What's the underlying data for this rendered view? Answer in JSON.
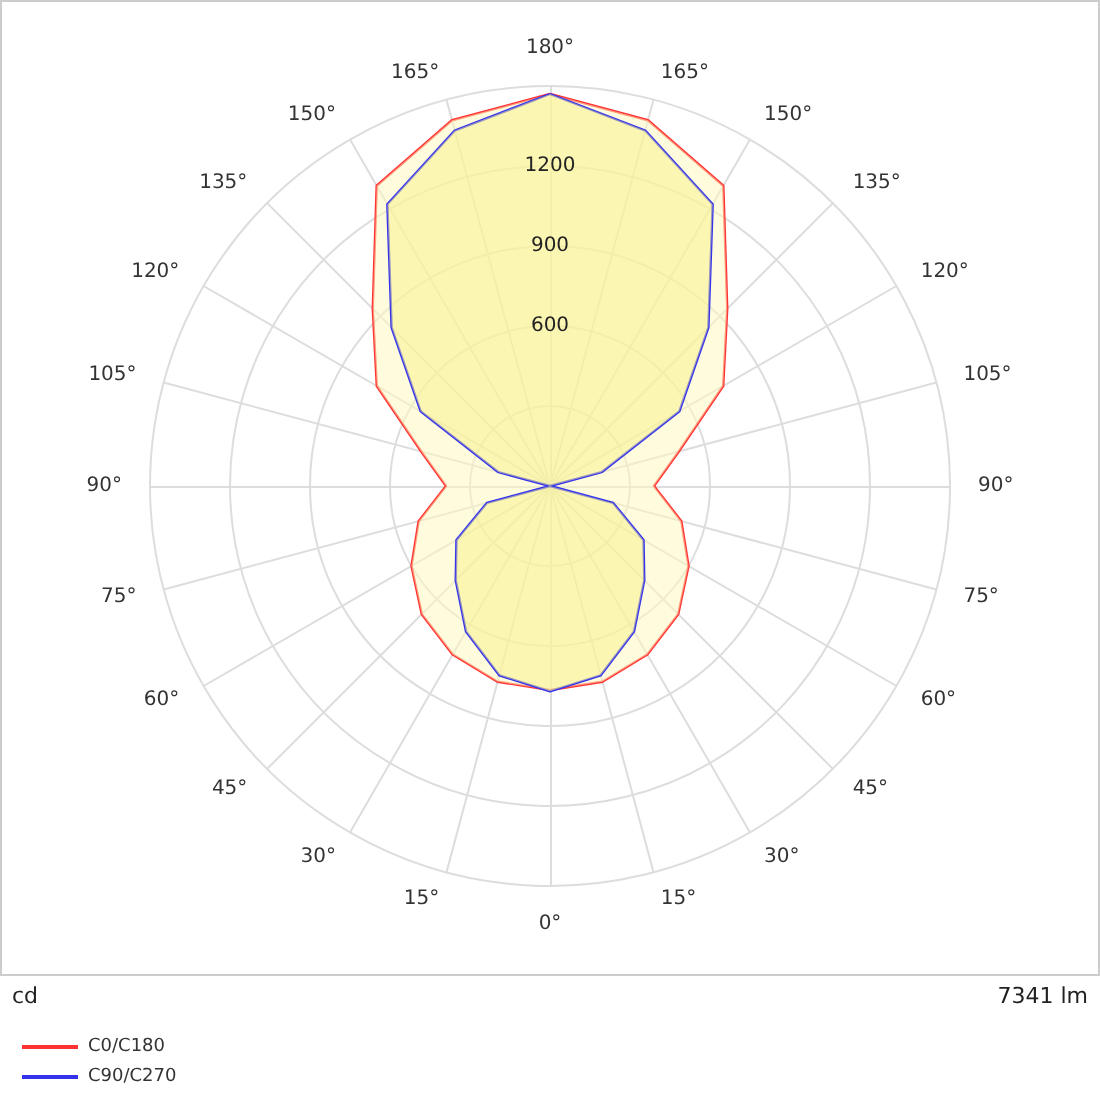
{
  "chart_data": {
    "type": "radar",
    "categories": [
      "180°",
      "165°",
      "150°",
      "135°",
      "120°",
      "105°",
      "90°",
      "75°",
      "60°",
      "45°",
      "30°",
      "15°",
      "0°",
      "15°",
      "30°",
      "45°",
      "60°",
      "75°",
      "90°",
      "105°",
      "120°",
      "135°",
      "150°",
      "165°"
    ],
    "series": [
      {
        "name": "C0/C180",
        "color": "#ff3333",
        "values": [
          1470,
          1420,
          1300,
          940,
          750,
          500,
          390,
          510,
          600,
          680,
          730,
          760,
          765,
          760,
          730,
          680,
          600,
          510,
          390,
          500,
          750,
          940,
          1300,
          1420
        ]
      },
      {
        "name": "C90/C270",
        "color": "#3333ee",
        "values": [
          1470,
          1380,
          1220,
          840,
          560,
          200,
          0,
          245,
          405,
          500,
          630,
          735,
          770,
          735,
          630,
          500,
          405,
          245,
          0,
          200,
          560,
          840,
          1220,
          1380
        ]
      }
    ],
    "ylim": [
      0,
      1500
    ],
    "yticks": [
      600,
      900,
      1200
    ],
    "grid": true,
    "legend": "bottom left",
    "annotations": [
      "cd",
      "7341 lm"
    ]
  }
}
